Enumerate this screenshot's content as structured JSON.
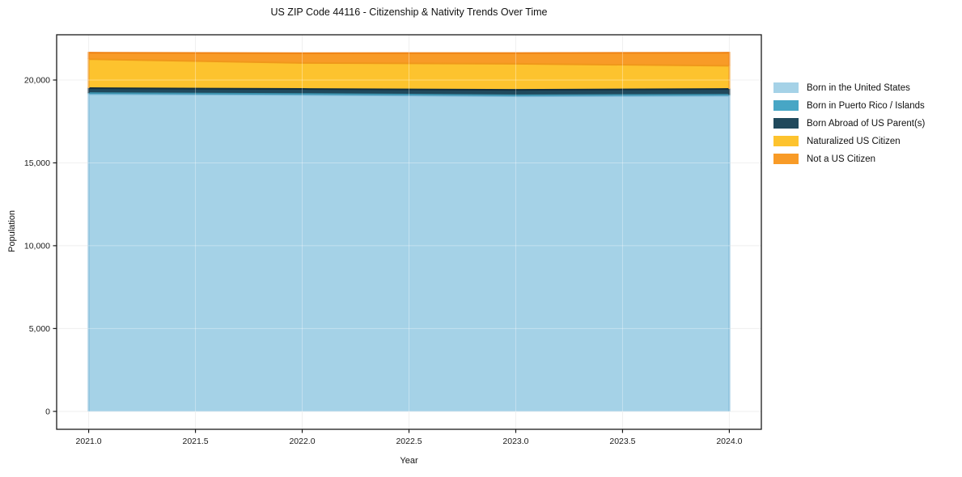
{
  "title": "US ZIP Code 44116 - Citizenship & Nativity Trends Over Time",
  "chart_data": {
    "type": "area",
    "stacked": true,
    "title": "US ZIP Code 44116 - Citizenship & Nativity Trends Over Time",
    "xlabel": "Year",
    "ylabel": "Population",
    "x": [
      2021,
      2022,
      2023,
      2024
    ],
    "series": [
      {
        "name": "Born in the United States",
        "values": [
          19150,
          19100,
          19020,
          19050
        ],
        "fill": "#a5d2e7",
        "edge": "#7db9d8"
      },
      {
        "name": "Born in Puerto Rico / Islands",
        "values": [
          60,
          60,
          60,
          60
        ],
        "fill": "#47a6c5",
        "edge": "#3b92ae"
      },
      {
        "name": "Born Abroad of US Parent(s)",
        "values": [
          300,
          300,
          330,
          350
        ],
        "fill": "#20495c",
        "edge": "#132f3e"
      },
      {
        "name": "Naturalized US Citizen",
        "values": [
          1750,
          1570,
          1570,
          1400
        ],
        "fill": "#fdc32e",
        "edge": "#f0981b"
      },
      {
        "name": "Not a US Citizen",
        "values": [
          390,
          590,
          650,
          790
        ],
        "fill": "#f89b27",
        "edge": "#ef8214"
      }
    ],
    "xlim": [
      2020.85,
      2024.15
    ],
    "ylim": [
      -1082,
      22732
    ],
    "xticks": {
      "values": [
        2021.0,
        2021.5,
        2022.0,
        2022.5,
        2023.0,
        2023.5,
        2024.0
      ],
      "labels": [
        "2021.0",
        "2021.5",
        "2022.0",
        "2022.5",
        "2023.0",
        "2023.5",
        "2024.0"
      ]
    },
    "yticks": {
      "values": [
        0,
        5000,
        10000,
        15000,
        20000
      ],
      "labels": [
        "0",
        "5,000",
        "10,000",
        "15,000",
        "20,000"
      ]
    },
    "grid": true,
    "legend_position": "right-outside"
  },
  "colors": {
    "background": "#ffffff",
    "spine": "#1a1a1a",
    "grid": "#e9e9e9",
    "text": "#1a1a1a"
  }
}
